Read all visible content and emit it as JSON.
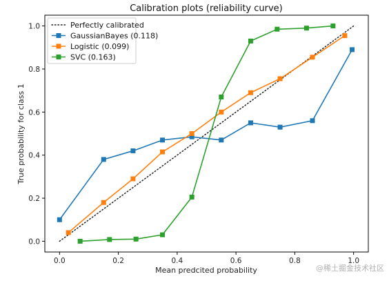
{
  "chart_data": {
    "type": "line",
    "title": "Calibration plots  (reliability curve)",
    "xlabel": "Mean predcited probability",
    "ylabel": "True probability for class 1",
    "xlim": [
      -0.05,
      1.05
    ],
    "ylim": [
      -0.05,
      1.05
    ],
    "xticks": [
      "0.0",
      "0.2",
      "0.4",
      "0.6",
      "0.8",
      "1.0"
    ],
    "yticks": [
      "0.0",
      "0.2",
      "0.4",
      "0.6",
      "0.8",
      "1.0"
    ],
    "legend_position": "top-left",
    "grid": false,
    "reference": {
      "name": "Perfectly calibrated",
      "x": [
        0,
        1
      ],
      "y": [
        0,
        1
      ],
      "style": "dotted",
      "color": "#222222"
    },
    "series": [
      {
        "name": "GaussianBayes (0.118)",
        "color": "#1f77b4",
        "x": [
          0.0,
          0.15,
          0.25,
          0.35,
          0.45,
          0.55,
          0.65,
          0.75,
          0.86,
          0.995
        ],
        "y": [
          0.1,
          0.38,
          0.42,
          0.47,
          0.485,
          0.47,
          0.55,
          0.53,
          0.56,
          0.89
        ]
      },
      {
        "name": "Logistic (0.099)",
        "color": "#ff7f0e",
        "x": [
          0.03,
          0.15,
          0.25,
          0.35,
          0.45,
          0.55,
          0.65,
          0.75,
          0.86,
          0.97
        ],
        "y": [
          0.04,
          0.18,
          0.29,
          0.415,
          0.5,
          0.6,
          0.69,
          0.755,
          0.855,
          0.955
        ]
      },
      {
        "name": "SVC (0.163)",
        "color": "#2ca02c",
        "x": [
          0.07,
          0.17,
          0.26,
          0.35,
          0.45,
          0.55,
          0.65,
          0.74,
          0.84,
          0.93
        ],
        "y": [
          0.0,
          0.008,
          0.01,
          0.03,
          0.205,
          0.67,
          0.93,
          0.985,
          0.99,
          1.0
        ]
      }
    ]
  },
  "watermark": "@稀土掘金技术社区"
}
